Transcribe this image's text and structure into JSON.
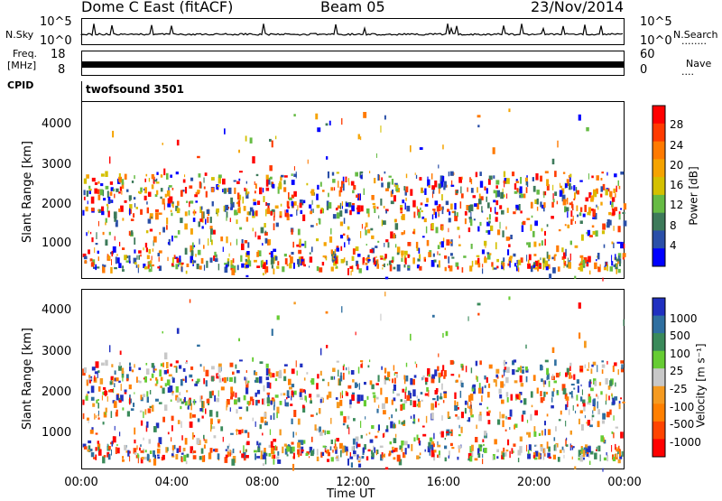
{
  "header": {
    "station": "Dome C East (fitACF)",
    "beam": "Beam 05",
    "date": "23/Nov/2014"
  },
  "side_labels": {
    "nsky": "N.Sky",
    "freq_line1": "Freq.",
    "freq_line2": "[MHz]",
    "cpid": "CPID",
    "nsearch": "N.Search",
    "nave": "Nave",
    "dotted": "........",
    "dotted_short": "...."
  },
  "noise_axis": {
    "left_top": "10^5",
    "left_bottom": "10^0",
    "right_top": "10^5",
    "right_bottom": "10^0"
  },
  "freq_axis": {
    "left_top": "18",
    "left_bottom": "8",
    "right_top": "60",
    "right_bottom": "0"
  },
  "cpid_text": "twofsound 3501",
  "colors": {
    "power_scale": [
      "#0000ff",
      "#2a4fa8",
      "#3d7a5a",
      "#66bb44",
      "#d4c000",
      "#f5a300",
      "#ff7a00",
      "#ff3a00",
      "#ff0000"
    ],
    "velocity_scale": [
      "#ff0000",
      "#ff4400",
      "#ff7f00",
      "#f59a20",
      "#c8c8c8",
      "#66cc33",
      "#3a8a5a",
      "#2f6fa0",
      "#2030c0"
    ]
  },
  "chart_data": [
    {
      "type": "heatmap",
      "name": "power",
      "ylabel": "Slant Range [km]",
      "yticks": [
        "1000",
        "2000",
        "3000",
        "4000"
      ],
      "ylim": [
        180,
        4500
      ],
      "xlim_hours": [
        0,
        24
      ],
      "colorbar": {
        "label": "Power [dB]",
        "ticks": [
          "4",
          "8",
          "12",
          "16",
          "20",
          "24",
          "28"
        ],
        "range": [
          0,
          32
        ]
      }
    },
    {
      "type": "heatmap",
      "name": "velocity",
      "ylabel": "Slant Range [km]",
      "yticks": [
        "1000",
        "2000",
        "3000",
        "4000"
      ],
      "ylim": [
        180,
        4500
      ],
      "xlim_hours": [
        0,
        24
      ],
      "colorbar": {
        "label": "Velocity [m s⁻¹]",
        "ticks": [
          "1000",
          "500",
          "100",
          "25",
          "-25",
          "-100",
          "-500",
          "-1000"
        ]
      },
      "xlabel": "Time UT",
      "xticks": [
        "00:00",
        "04:00",
        "08:00",
        "12:00",
        "16:00",
        "20:00",
        "00:00"
      ]
    }
  ]
}
